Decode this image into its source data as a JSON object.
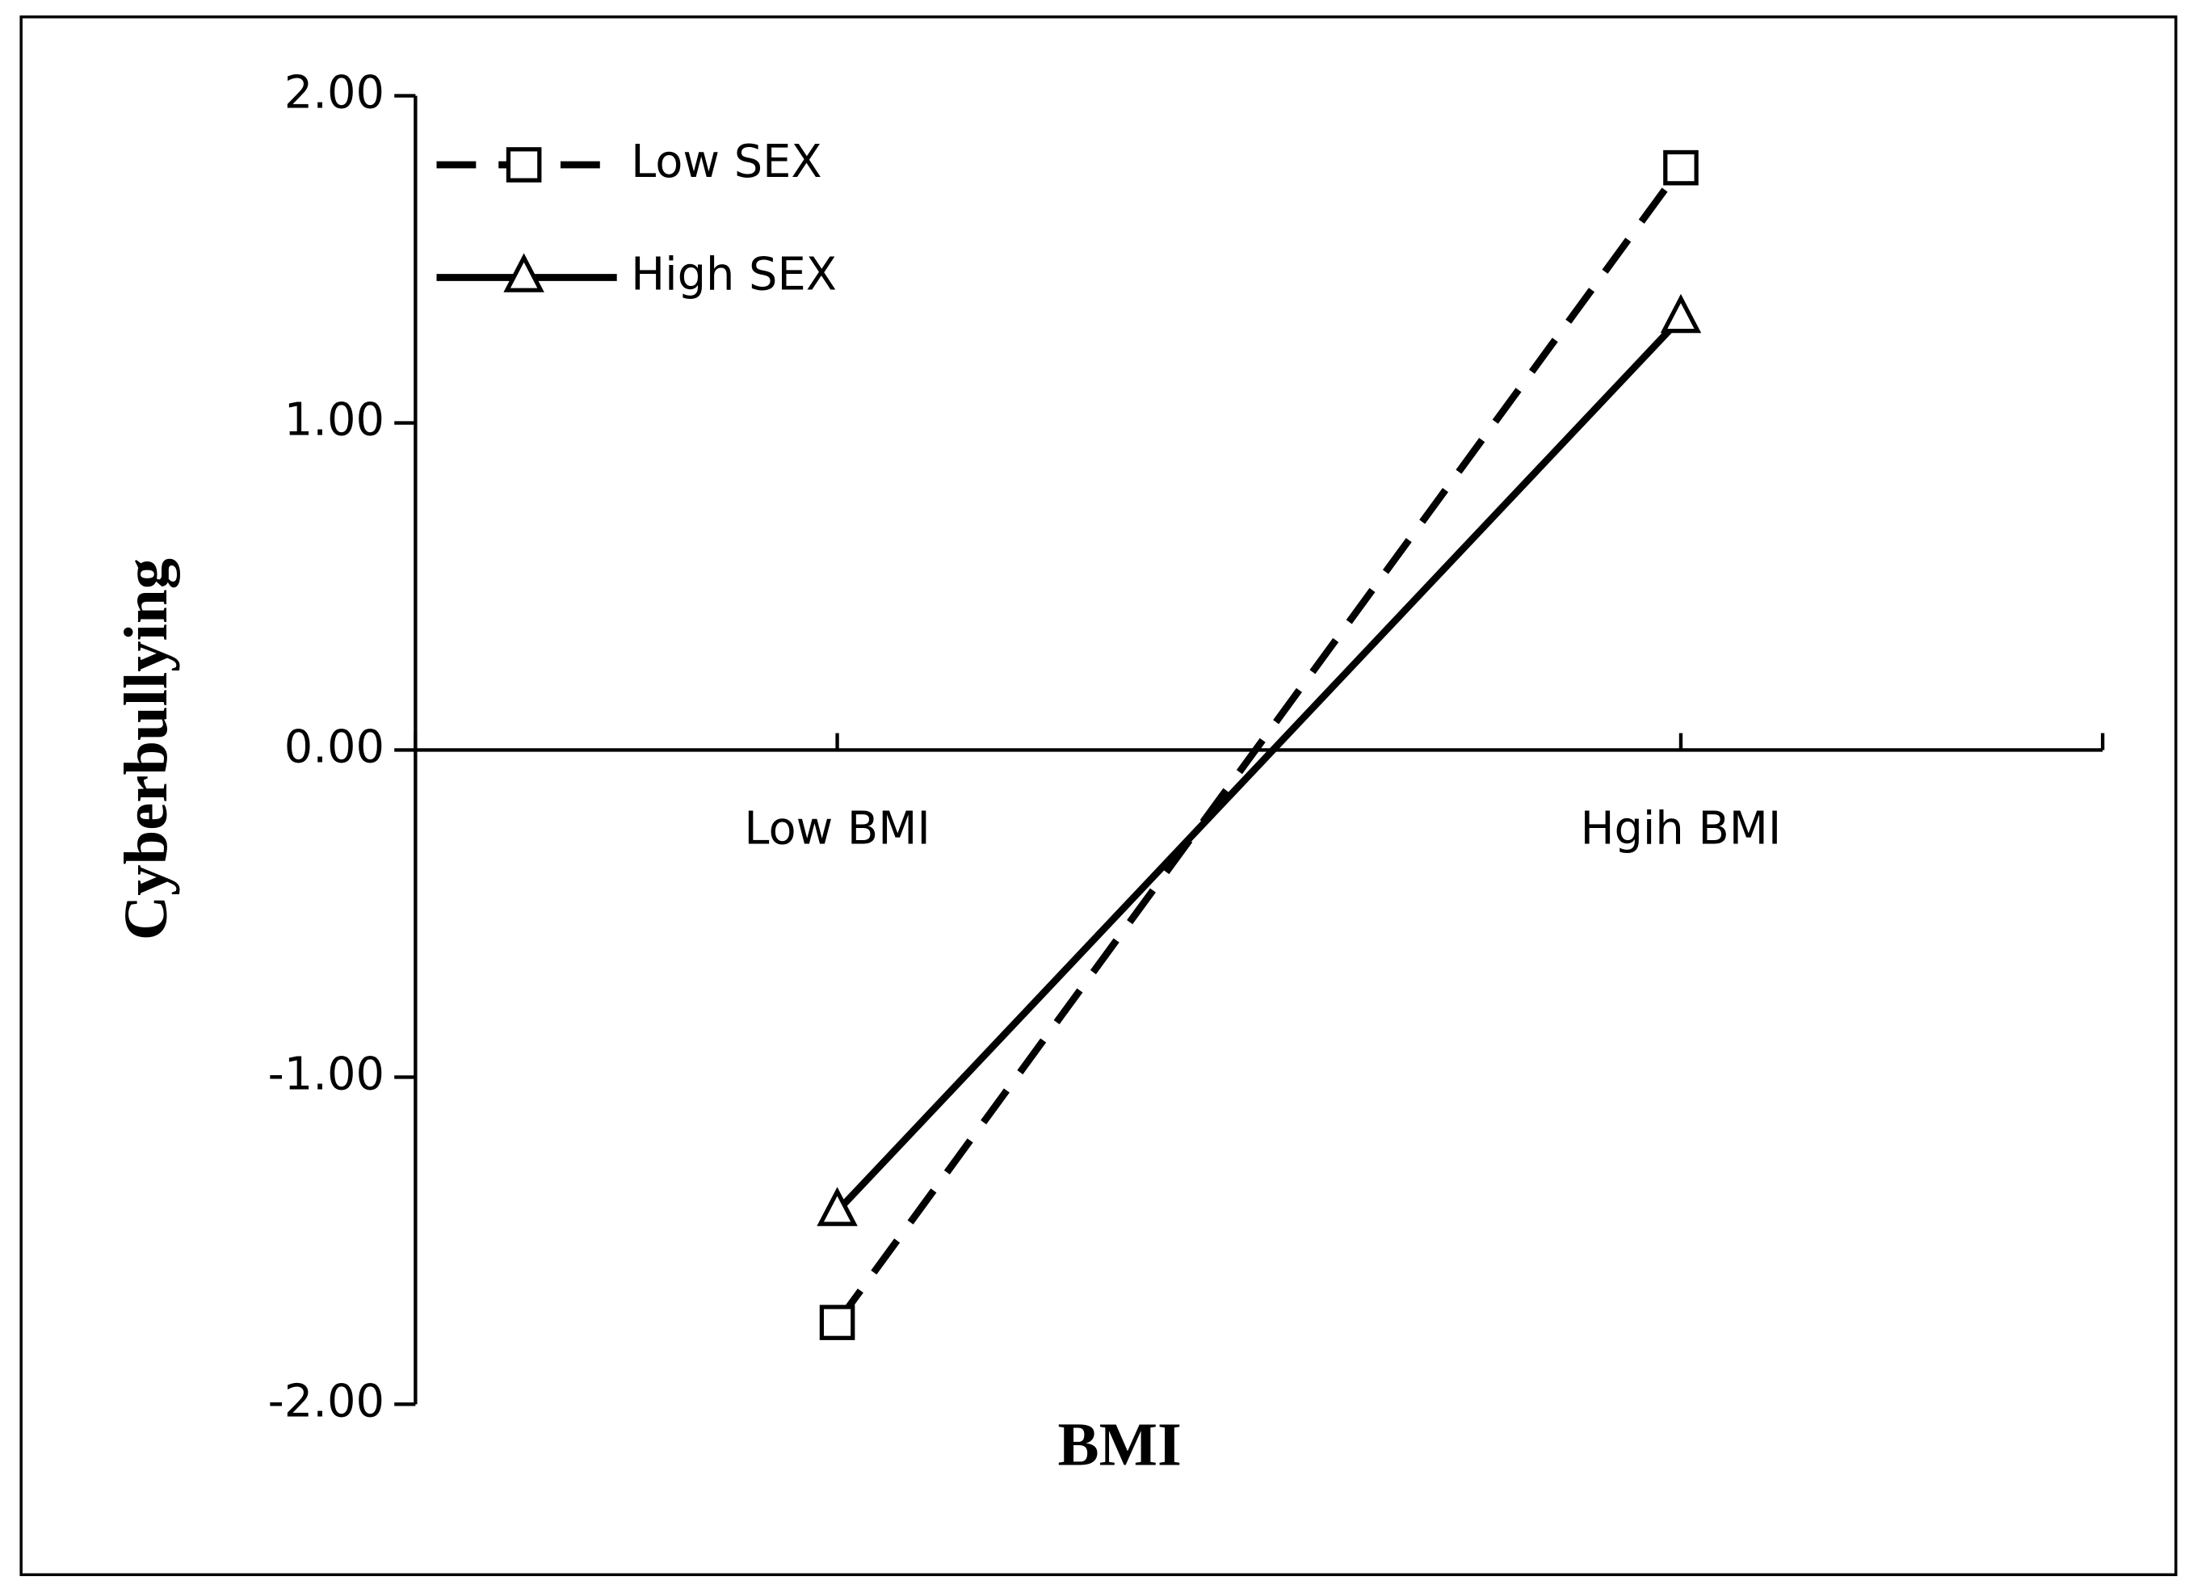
{
  "chart_data": {
    "type": "line",
    "x_label": "BMI",
    "y_label": "Cyberbullying",
    "categories": [
      "Low BMI",
      "Hgih BMI"
    ],
    "series": [
      {
        "name": "Low SEX",
        "color": "#000000",
        "dashed": true,
        "marker": "square",
        "values": [
          -1.75,
          1.78
        ]
      },
      {
        "name": "High SEX",
        "color": "#000000",
        "dashed": false,
        "marker": "triangle",
        "values": [
          -1.41,
          1.32
        ]
      }
    ],
    "ylim": [
      -2,
      2
    ],
    "yticks": [
      {
        "value": -2,
        "label": "-2.00"
      },
      {
        "value": -1,
        "label": "-1.00"
      },
      {
        "value": 0,
        "label": "0.00"
      },
      {
        "value": 1,
        "label": "1.00"
      },
      {
        "value": 2,
        "label": "2.00"
      }
    ],
    "legend": "upper left",
    "grid": false
  }
}
